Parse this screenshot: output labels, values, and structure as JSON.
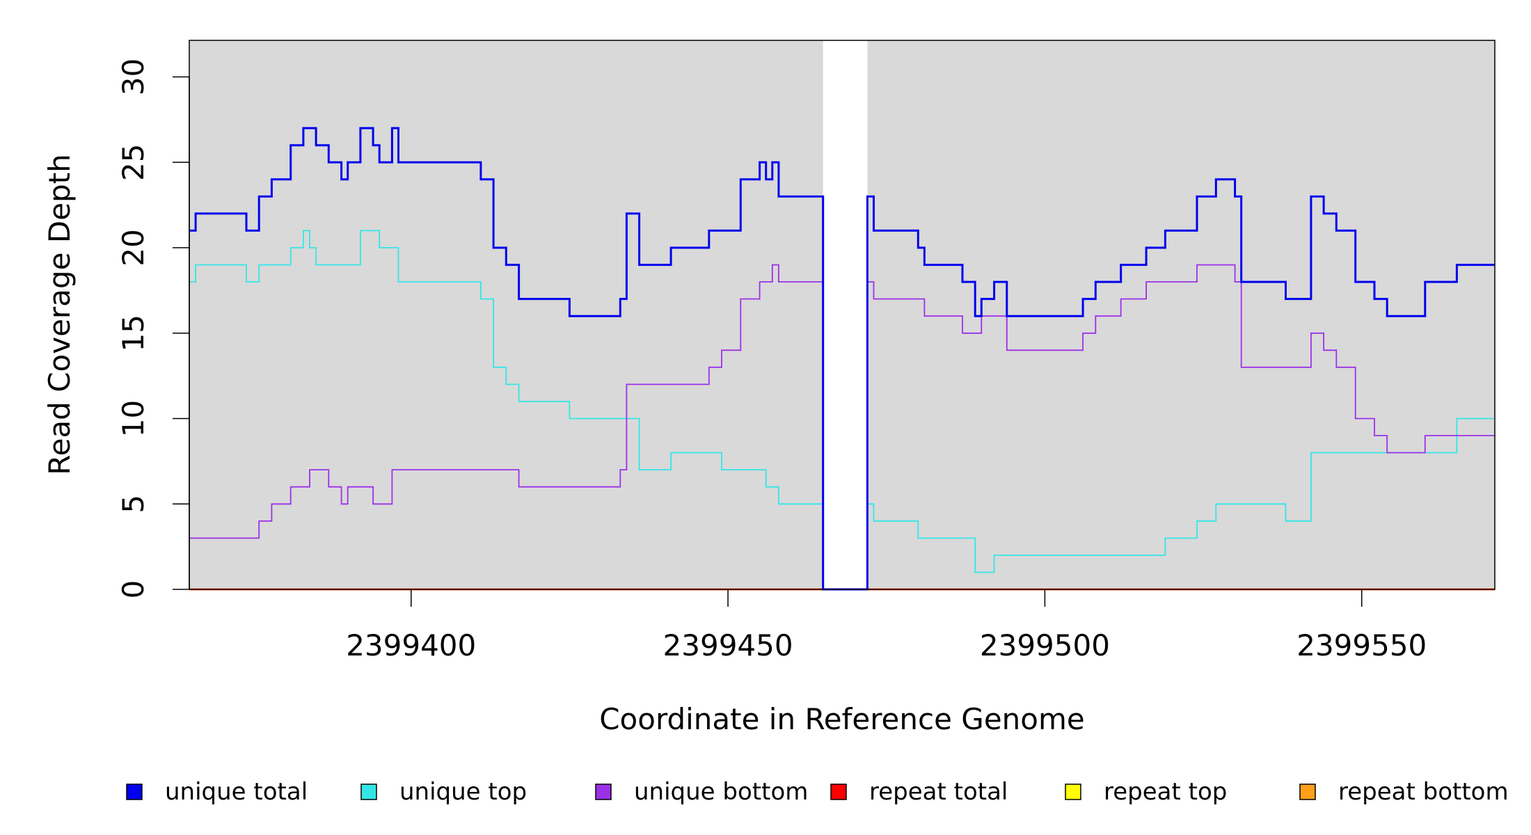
{
  "chart_data": {
    "type": "line",
    "title": "",
    "xlabel": "Coordinate in Reference Genome",
    "ylabel": "Read Coverage Depth",
    "xlim": [
      2399365,
      2399571
    ],
    "ylim": [
      0,
      32
    ],
    "x_ticks": [
      2399400,
      2399450,
      2399500,
      2399550
    ],
    "y_ticks": [
      0,
      5,
      10,
      15,
      20,
      25,
      30
    ],
    "x_tick_labels": [
      "2399400",
      "2399450",
      "2399500",
      "2399550"
    ],
    "y_tick_labels": [
      "0",
      "5",
      "10",
      "15",
      "20",
      "25",
      "30"
    ],
    "background": "#d9d9d9",
    "gap_region": [
      2399465,
      2399472
    ],
    "grid": false,
    "legend_position": "bottom",
    "series": [
      {
        "name": "unique total",
        "color": "#0000ee",
        "step": [
          [
            2399365,
            21
          ],
          [
            2399366,
            22
          ],
          [
            2399374,
            21
          ],
          [
            2399376,
            23
          ],
          [
            2399378,
            24
          ],
          [
            2399381,
            26
          ],
          [
            2399383,
            27
          ],
          [
            2399385,
            26
          ],
          [
            2399387,
            25
          ],
          [
            2399389,
            24
          ],
          [
            2399390,
            25
          ],
          [
            2399392,
            27
          ],
          [
            2399394,
            26
          ],
          [
            2399395,
            25
          ],
          [
            2399397,
            27
          ],
          [
            2399398,
            25
          ],
          [
            2399411,
            24
          ],
          [
            2399413,
            20
          ],
          [
            2399415,
            19
          ],
          [
            2399417,
            17
          ],
          [
            2399425,
            16
          ],
          [
            2399433,
            17
          ],
          [
            2399434,
            22
          ],
          [
            2399436,
            19
          ],
          [
            2399441,
            20
          ],
          [
            2399447,
            21
          ],
          [
            2399452,
            24
          ],
          [
            2399455,
            25
          ],
          [
            2399456,
            24
          ],
          [
            2399457,
            25
          ],
          [
            2399458,
            23
          ],
          [
            2399465,
            0
          ],
          [
            2399472,
            23
          ],
          [
            2399473,
            21
          ],
          [
            2399480,
            20
          ],
          [
            2399481,
            19
          ],
          [
            2399487,
            18
          ],
          [
            2399489,
            16
          ],
          [
            2399490,
            17
          ],
          [
            2399492,
            18
          ],
          [
            2399494,
            16
          ],
          [
            2399506,
            17
          ],
          [
            2399508,
            18
          ],
          [
            2399512,
            19
          ],
          [
            2399516,
            20
          ],
          [
            2399519,
            21
          ],
          [
            2399524,
            23
          ],
          [
            2399527,
            24
          ],
          [
            2399530,
            23
          ],
          [
            2399531,
            18
          ],
          [
            2399538,
            17
          ],
          [
            2399542,
            23
          ],
          [
            2399544,
            22
          ],
          [
            2399546,
            21
          ],
          [
            2399549,
            18
          ],
          [
            2399552,
            17
          ],
          [
            2399554,
            16
          ],
          [
            2399560,
            18
          ],
          [
            2399565,
            19
          ],
          [
            2399571,
            19
          ]
        ]
      },
      {
        "name": "unique top",
        "color": "#33e6e6",
        "step": [
          [
            2399365,
            18
          ],
          [
            2399366,
            19
          ],
          [
            2399374,
            18
          ],
          [
            2399376,
            19
          ],
          [
            2399381,
            20
          ],
          [
            2399383,
            21
          ],
          [
            2399384,
            20
          ],
          [
            2399385,
            19
          ],
          [
            2399392,
            21
          ],
          [
            2399395,
            20
          ],
          [
            2399398,
            18
          ],
          [
            2399411,
            17
          ],
          [
            2399413,
            13
          ],
          [
            2399415,
            12
          ],
          [
            2399417,
            11
          ],
          [
            2399425,
            10
          ],
          [
            2399436,
            7
          ],
          [
            2399441,
            8
          ],
          [
            2399449,
            7
          ],
          [
            2399456,
            6
          ],
          [
            2399458,
            5
          ],
          [
            2399465,
            0
          ],
          [
            2399472,
            5
          ],
          [
            2399473,
            4
          ],
          [
            2399480,
            3
          ],
          [
            2399489,
            1
          ],
          [
            2399492,
            2
          ],
          [
            2399519,
            3
          ],
          [
            2399524,
            4
          ],
          [
            2399527,
            5
          ],
          [
            2399538,
            4
          ],
          [
            2399542,
            8
          ],
          [
            2399565,
            10
          ],
          [
            2399571,
            10
          ]
        ]
      },
      {
        "name": "unique bottom",
        "color": "#9b30e8",
        "step": [
          [
            2399365,
            3
          ],
          [
            2399376,
            4
          ],
          [
            2399378,
            5
          ],
          [
            2399381,
            6
          ],
          [
            2399384,
            7
          ],
          [
            2399387,
            6
          ],
          [
            2399389,
            5
          ],
          [
            2399390,
            6
          ],
          [
            2399394,
            5
          ],
          [
            2399397,
            7
          ],
          [
            2399417,
            6
          ],
          [
            2399433,
            7
          ],
          [
            2399434,
            12
          ],
          [
            2399447,
            13
          ],
          [
            2399449,
            14
          ],
          [
            2399452,
            17
          ],
          [
            2399455,
            18
          ],
          [
            2399457,
            19
          ],
          [
            2399458,
            18
          ],
          [
            2399465,
            0
          ],
          [
            2399472,
            18
          ],
          [
            2399473,
            17
          ],
          [
            2399481,
            16
          ],
          [
            2399487,
            15
          ],
          [
            2399490,
            16
          ],
          [
            2399494,
            14
          ],
          [
            2399506,
            15
          ],
          [
            2399508,
            16
          ],
          [
            2399512,
            17
          ],
          [
            2399516,
            18
          ],
          [
            2399524,
            19
          ],
          [
            2399530,
            18
          ],
          [
            2399531,
            13
          ],
          [
            2399542,
            15
          ],
          [
            2399544,
            14
          ],
          [
            2399546,
            13
          ],
          [
            2399549,
            10
          ],
          [
            2399552,
            9
          ],
          [
            2399554,
            8
          ],
          [
            2399560,
            9
          ],
          [
            2399571,
            9
          ]
        ]
      },
      {
        "name": "repeat total",
        "color": "#ff0000",
        "step": [
          [
            2399365,
            0
          ],
          [
            2399571,
            0
          ]
        ]
      },
      {
        "name": "repeat top",
        "color": "#ffff00",
        "step": [
          [
            2399365,
            0
          ],
          [
            2399571,
            0
          ]
        ]
      },
      {
        "name": "repeat bottom",
        "color": "#ff9f1a",
        "step": [
          [
            2399365,
            0
          ],
          [
            2399571,
            0
          ]
        ]
      }
    ]
  }
}
